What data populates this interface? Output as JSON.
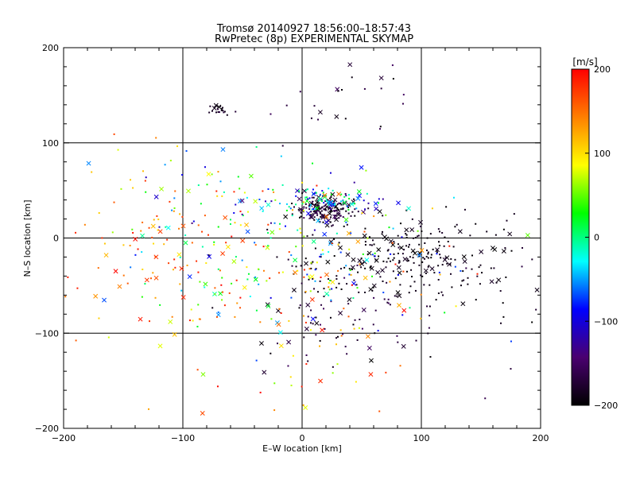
{
  "chart_data": {
    "type": "scatter",
    "title": "Tromsø 20140927 18:56:00–18:57:43",
    "subtitle": "RwPretec (8p) EXPERIMENTAL SKYMAP",
    "xlabel": "E–W location [km]",
    "ylabel": "N–S location [km]",
    "xlim": [
      -200,
      200
    ],
    "ylim": [
      -200,
      200
    ],
    "xticks": [
      -200,
      -100,
      0,
      100,
      200
    ],
    "yticks": [
      -200,
      -100,
      0,
      100,
      200
    ],
    "xtick_labels": [
      "−200",
      "−100",
      "0",
      "100",
      "200"
    ],
    "ytick_labels": [
      "−200",
      "−100",
      "0",
      "100",
      "200"
    ],
    "grid": true,
    "markers": [
      "dot",
      "x"
    ],
    "colorbar": {
      "label": "[m/s]",
      "range": [
        -200,
        200
      ],
      "ticks": [
        -200,
        -100,
        0,
        100,
        200
      ],
      "tick_labels": [
        "−200",
        "−100",
        "0",
        "100",
        "200"
      ],
      "colormap": [
        "#000000",
        "#4a0070",
        "#0000ff",
        "#00ffff",
        "#00ff00",
        "#ffff00",
        "#ff7f00",
        "#ff0000"
      ],
      "placement": "right"
    },
    "clusters": [
      {
        "cx": 20,
        "cy": 30,
        "sx": 12,
        "sy": 7,
        "n": 160,
        "v": [
          -200,
          -150
        ]
      },
      {
        "cx": 20,
        "cy": 40,
        "sx": 25,
        "sy": 8,
        "n": 90,
        "v": [
          -130,
          30
        ]
      },
      {
        "cx": 90,
        "cy": -20,
        "sx": 45,
        "sy": 22,
        "n": 230,
        "v": [
          -200,
          -180
        ]
      },
      {
        "cx": 40,
        "cy": -60,
        "sx": 40,
        "sy": 30,
        "n": 70,
        "v": [
          -200,
          -150
        ]
      },
      {
        "cx": -20,
        "cy": -30,
        "sx": 70,
        "sy": 40,
        "n": 260,
        "v": [
          -100,
          200
        ]
      },
      {
        "cx": -130,
        "cy": -10,
        "sx": 40,
        "sy": 40,
        "n": 70,
        "v": [
          100,
          200
        ]
      },
      {
        "cx": -60,
        "cy": 40,
        "sx": 50,
        "sy": 25,
        "n": 60,
        "v": [
          -150,
          150
        ]
      },
      {
        "cx": 30,
        "cy": 150,
        "sx": 40,
        "sy": 25,
        "n": 25,
        "v": [
          -200,
          -150
        ]
      },
      {
        "cx": -70,
        "cy": 135,
        "sx": 7,
        "sy": 4,
        "n": 18,
        "v": [
          -200,
          -170
        ]
      },
      {
        "cx": 20,
        "cy": -110,
        "sx": 30,
        "sy": 15,
        "n": 25,
        "v": [
          -200,
          -150
        ]
      },
      {
        "cx": 0,
        "cy": -140,
        "sx": 60,
        "sy": 35,
        "n": 30,
        "v": [
          50,
          200
        ]
      },
      {
        "cx": 150,
        "cy": -60,
        "sx": 40,
        "sy": 50,
        "n": 25,
        "v": [
          -200,
          -160
        ]
      }
    ]
  }
}
